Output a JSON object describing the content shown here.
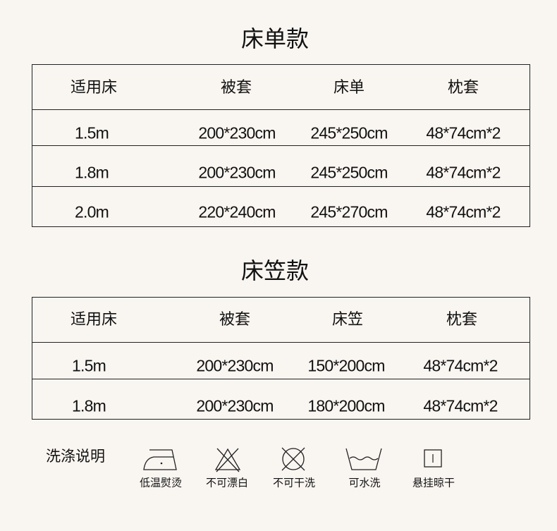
{
  "sections": [
    {
      "title": "床单款",
      "headers": [
        "适用床",
        "被套",
        "床单",
        "枕套"
      ],
      "rows": [
        [
          "1.5m",
          "200*230cm",
          "245*250cm",
          "48*74cm*2"
        ],
        [
          "1.8m",
          "200*230cm",
          "245*250cm",
          "48*74cm*2"
        ],
        [
          "2.0m",
          "220*240cm",
          "245*270cm",
          "48*74cm*2"
        ]
      ]
    },
    {
      "title": "床笠款",
      "headers": [
        "适用床",
        "被套",
        "床笠",
        "枕套"
      ],
      "rows": [
        [
          "1.5m",
          "200*230cm",
          "150*200cm",
          "48*74cm*2"
        ],
        [
          "1.8m",
          "200*230cm",
          "180*200cm",
          "48*74cm*2"
        ]
      ]
    }
  ],
  "care": {
    "title": "洗涤说明",
    "items": [
      {
        "icon": "iron-low-heat-icon",
        "label": "低温熨烫"
      },
      {
        "icon": "no-bleach-icon",
        "label": "不可漂白"
      },
      {
        "icon": "no-dry-clean-icon",
        "label": "不可干洗"
      },
      {
        "icon": "washable-icon",
        "label": "可水洗"
      },
      {
        "icon": "hang-dry-icon",
        "label": "悬挂晾干"
      }
    ]
  }
}
